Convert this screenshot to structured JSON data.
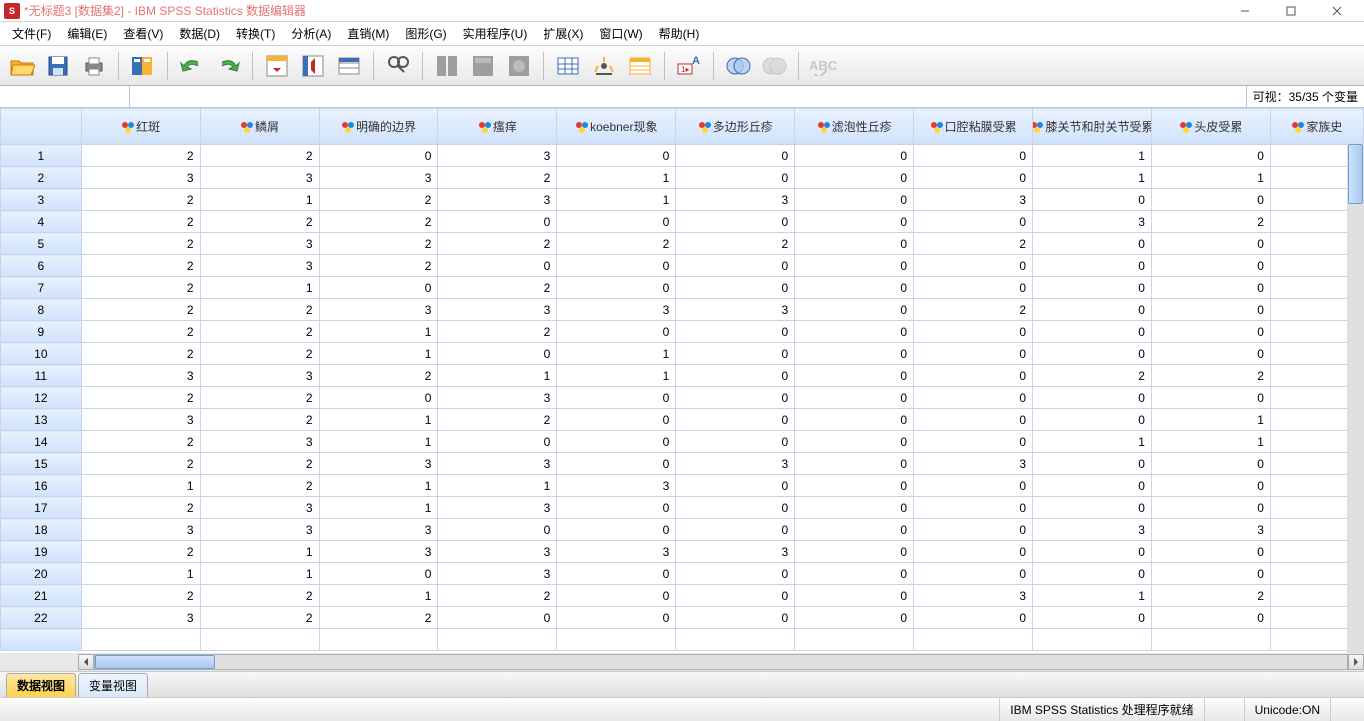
{
  "window": {
    "title": "*无标题3 [数据集2] - IBM SPSS Statistics 数据编辑器"
  },
  "menu": [
    "文件(F)",
    "编辑(E)",
    "查看(V)",
    "数据(D)",
    "转换(T)",
    "分析(A)",
    "直销(M)",
    "图形(G)",
    "实用程序(U)",
    "扩展(X)",
    "窗口(W)",
    "帮助(H)"
  ],
  "visible_vars": "可视：35/35 个变量",
  "columns": [
    {
      "name": "红斑"
    },
    {
      "name": "鳞屑"
    },
    {
      "name": "明确的边界"
    },
    {
      "name": "瘙痒"
    },
    {
      "name": "koebner现象"
    },
    {
      "name": "多边形丘疹"
    },
    {
      "name": "滤泡性丘疹"
    },
    {
      "name": "口腔粘膜受累"
    },
    {
      "name": "膝关节和肘关节受累"
    },
    {
      "name": "头皮受累"
    },
    {
      "name": "家族史"
    }
  ],
  "rows": [
    [
      2,
      2,
      0,
      3,
      0,
      0,
      0,
      0,
      1,
      0,
      ""
    ],
    [
      3,
      3,
      3,
      2,
      1,
      0,
      0,
      0,
      1,
      1,
      ""
    ],
    [
      2,
      1,
      2,
      3,
      1,
      3,
      0,
      3,
      0,
      0,
      ""
    ],
    [
      2,
      2,
      2,
      0,
      0,
      0,
      0,
      0,
      3,
      2,
      ""
    ],
    [
      2,
      3,
      2,
      2,
      2,
      2,
      0,
      2,
      0,
      0,
      ""
    ],
    [
      2,
      3,
      2,
      0,
      0,
      0,
      0,
      0,
      0,
      0,
      ""
    ],
    [
      2,
      1,
      0,
      2,
      0,
      0,
      0,
      0,
      0,
      0,
      ""
    ],
    [
      2,
      2,
      3,
      3,
      3,
      3,
      0,
      2,
      0,
      0,
      ""
    ],
    [
      2,
      2,
      1,
      2,
      0,
      0,
      0,
      0,
      0,
      0,
      ""
    ],
    [
      2,
      2,
      1,
      0,
      1,
      0,
      0,
      0,
      0,
      0,
      ""
    ],
    [
      3,
      3,
      2,
      1,
      1,
      0,
      0,
      0,
      2,
      2,
      ""
    ],
    [
      2,
      2,
      0,
      3,
      0,
      0,
      0,
      0,
      0,
      0,
      ""
    ],
    [
      3,
      2,
      1,
      2,
      0,
      0,
      0,
      0,
      0,
      1,
      ""
    ],
    [
      2,
      3,
      1,
      0,
      0,
      0,
      0,
      0,
      1,
      1,
      ""
    ],
    [
      2,
      2,
      3,
      3,
      0,
      3,
      0,
      3,
      0,
      0,
      ""
    ],
    [
      1,
      2,
      1,
      1,
      3,
      0,
      0,
      0,
      0,
      0,
      ""
    ],
    [
      2,
      3,
      1,
      3,
      0,
      0,
      0,
      0,
      0,
      0,
      ""
    ],
    [
      3,
      3,
      3,
      0,
      0,
      0,
      0,
      0,
      3,
      3,
      ""
    ],
    [
      2,
      1,
      3,
      3,
      3,
      3,
      0,
      0,
      0,
      0,
      ""
    ],
    [
      1,
      1,
      0,
      3,
      0,
      0,
      0,
      0,
      0,
      0,
      ""
    ],
    [
      2,
      2,
      1,
      2,
      0,
      0,
      0,
      3,
      1,
      2,
      ""
    ],
    [
      3,
      2,
      2,
      0,
      0,
      0,
      0,
      0,
      0,
      0,
      ""
    ]
  ],
  "view_tabs": {
    "data": "数据视图",
    "variable": "变量视图"
  },
  "status": {
    "ready": "IBM SPSS Statistics 处理程序就绪",
    "unicode": "Unicode:ON"
  },
  "colors": {
    "header_bg_top": "#e8f1ff",
    "header_bg_bottom": "#cfe2fb",
    "border": "#c8d4e8",
    "active_tab": "#ffd24d"
  }
}
